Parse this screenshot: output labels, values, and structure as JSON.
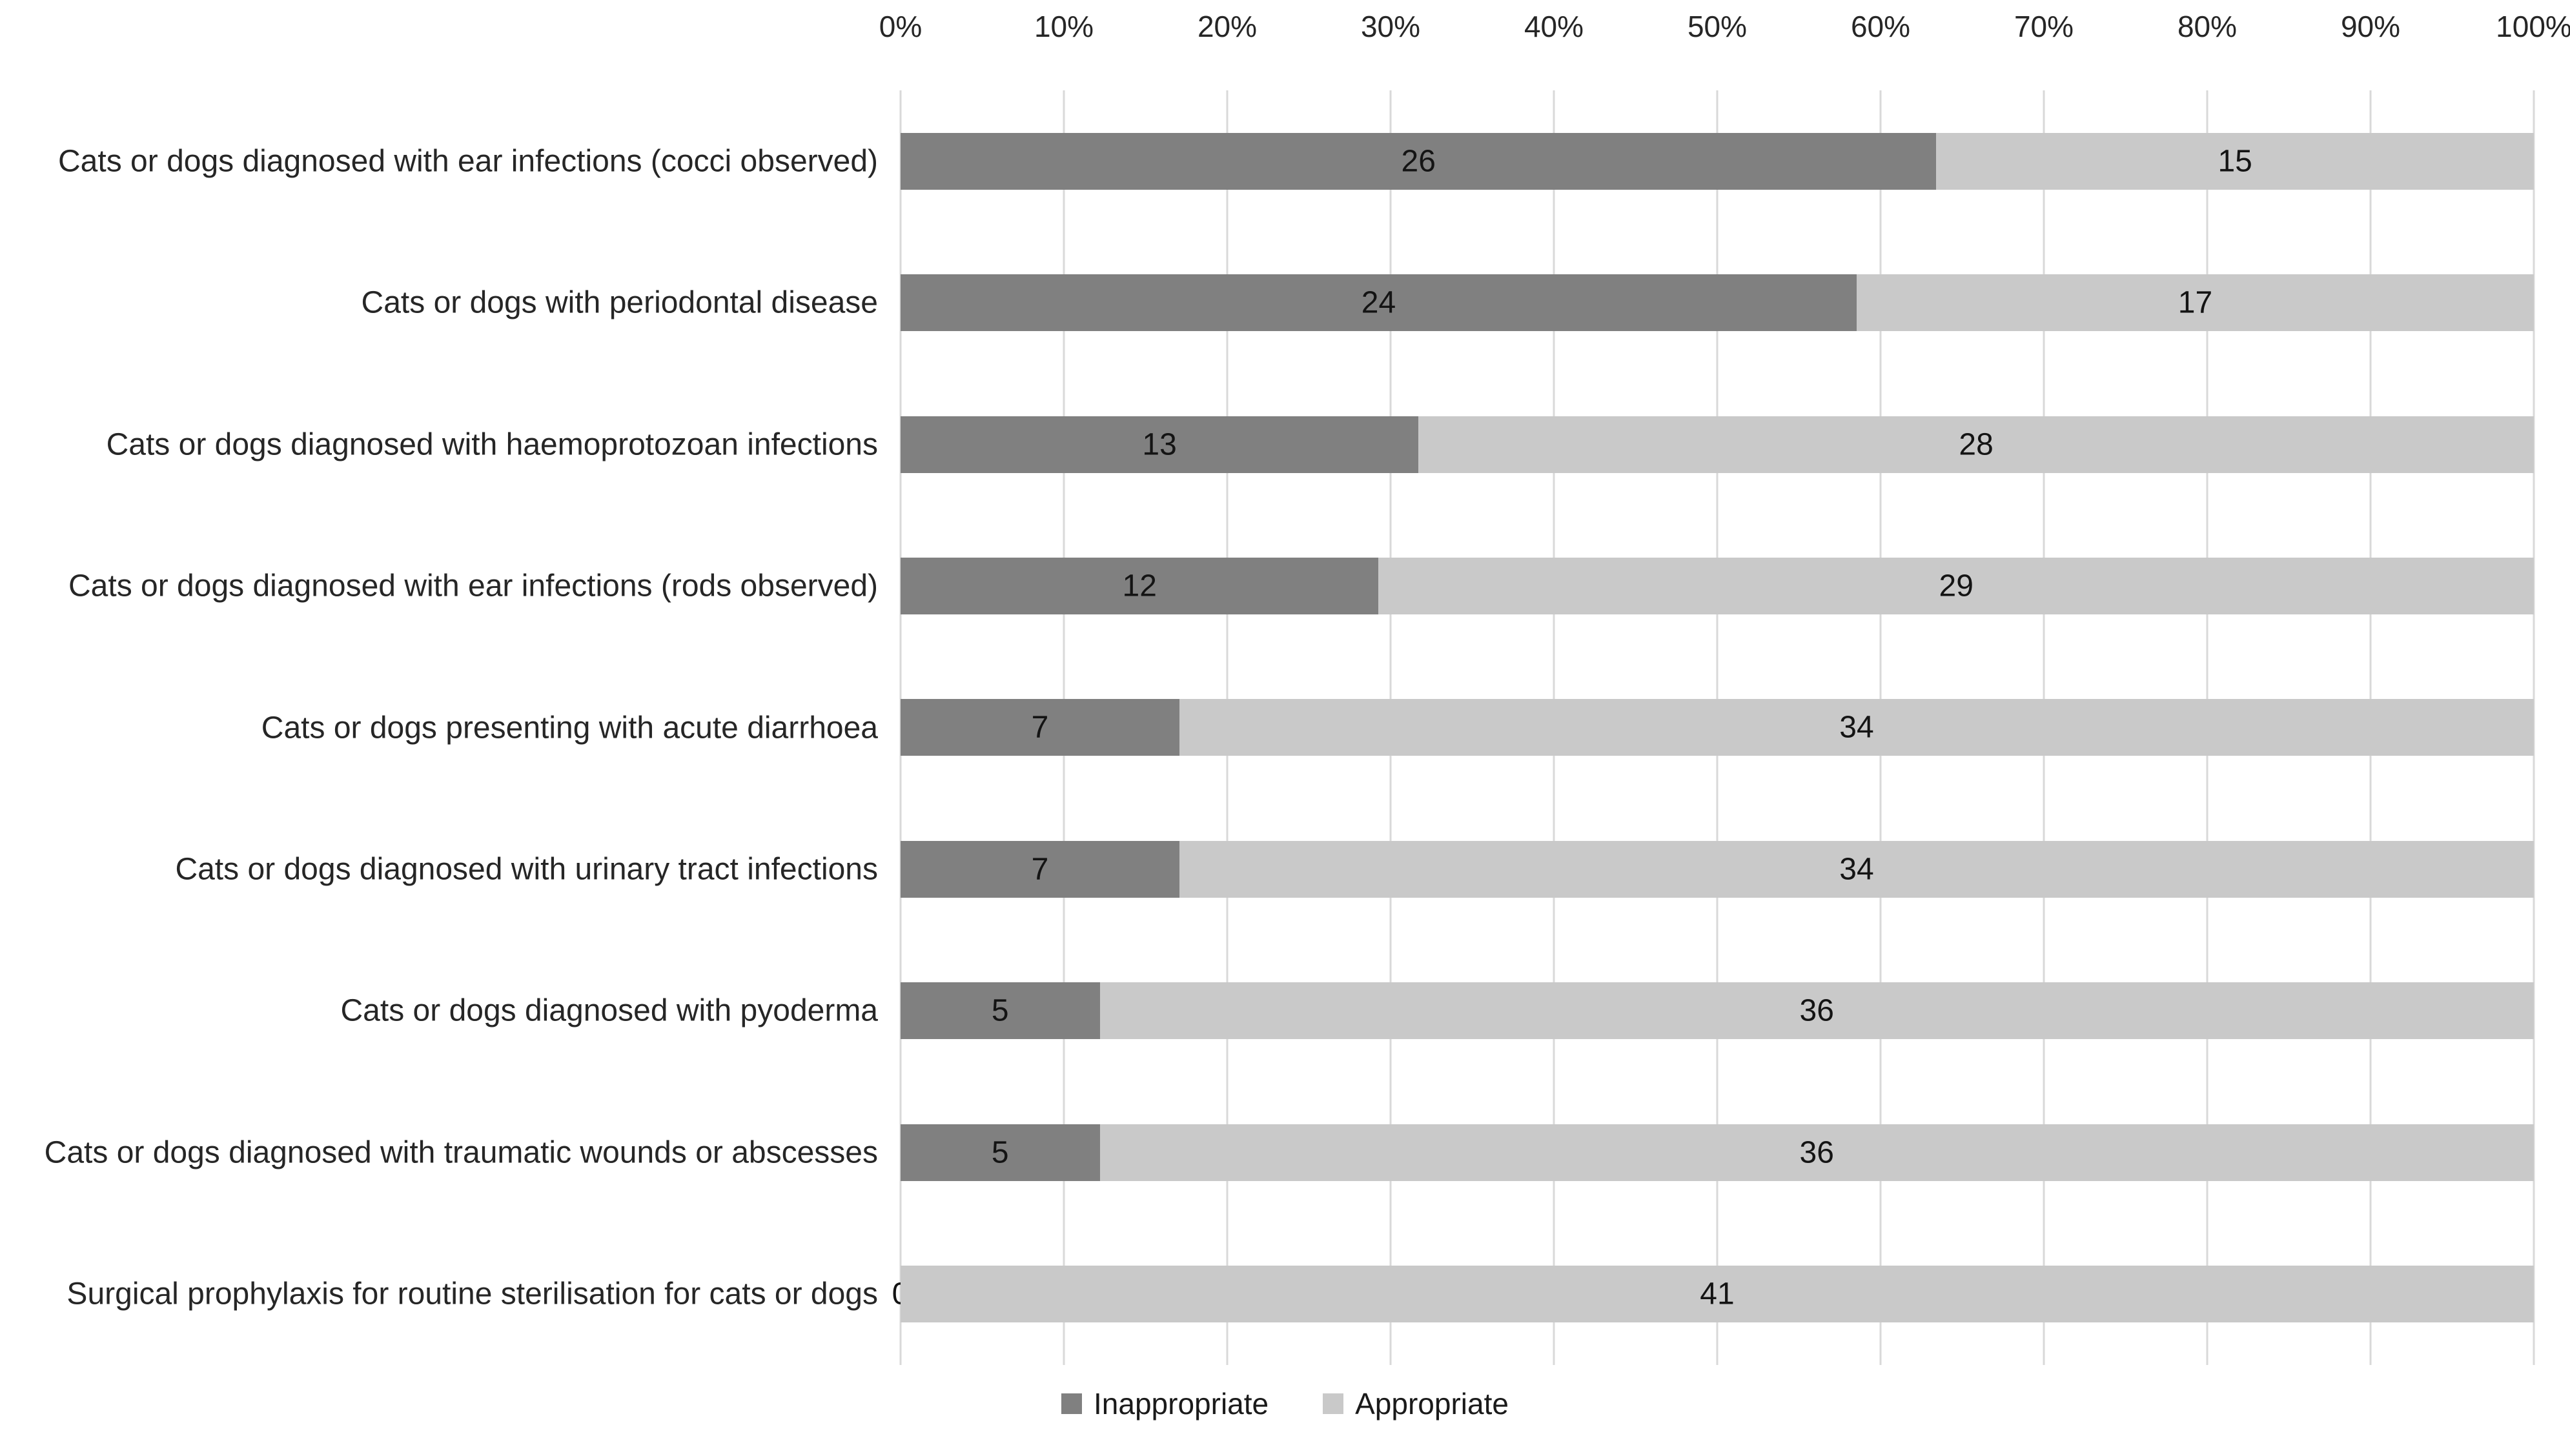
{
  "chart_data": {
    "type": "bar",
    "subtype": "stacked-100",
    "orientation": "horizontal",
    "title": "",
    "categories": [
      "Cats or dogs diagnosed with ear infections (cocci observed)",
      "Cats or dogs with periodontal disease",
      "Cats or dogs diagnosed with haemoprotozoan infections",
      "Cats or dogs diagnosed with ear infections (rods observed)",
      "Cats or dogs presenting with acute diarrhoea",
      "Cats or dogs diagnosed with urinary tract infections",
      "Cats or dogs diagnosed with pyoderma",
      "Cats or dogs diagnosed with traumatic wounds or abscesses",
      "Surgical prophylaxis for routine sterilisation for cats or dogs"
    ],
    "series": [
      {
        "name": "Inappropriate",
        "color": "#808080",
        "values": [
          26,
          24,
          13,
          12,
          7,
          7,
          5,
          5,
          0
        ]
      },
      {
        "name": "Appropriate",
        "color": "#c9c9c9",
        "values": [
          15,
          17,
          28,
          29,
          34,
          34,
          36,
          36,
          41
        ]
      }
    ],
    "row_total": 41,
    "x_axis": {
      "position": "top",
      "min": 0,
      "max": 100,
      "ticks": [
        "0%",
        "10%",
        "20%",
        "30%",
        "40%",
        "50%",
        "60%",
        "70%",
        "80%",
        "90%",
        "100%"
      ]
    },
    "grid": true,
    "gridline_color": "#d9d9d9",
    "legend_position": "bottom",
    "data_labels": true
  },
  "colors": {
    "background": "#ffffff",
    "axis_text": "#262626",
    "category_text": "#262626",
    "data_label_text": "#141414"
  }
}
